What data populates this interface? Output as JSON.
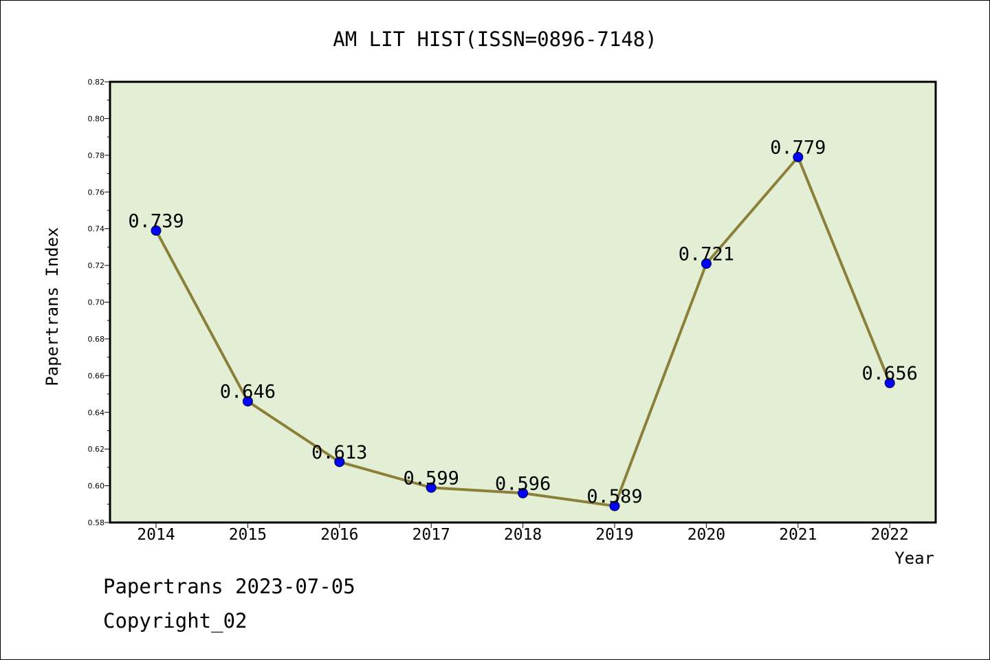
{
  "chart_data": {
    "type": "line",
    "title": "AM LIT HIST(ISSN=0896-7148)",
    "xlabel": "Year",
    "ylabel": "Papertrans Index",
    "categories": [
      "2014",
      "2015",
      "2016",
      "2017",
      "2018",
      "2019",
      "2020",
      "2021",
      "2022"
    ],
    "values": [
      0.739,
      0.646,
      0.613,
      0.599,
      0.596,
      0.589,
      0.721,
      0.779,
      0.656
    ],
    "data_labels": [
      "0.739",
      "0.646",
      "0.613",
      "0.599",
      "0.596",
      "0.589",
      "0.721",
      "0.779",
      "0.656"
    ],
    "ylim": [
      0.58,
      0.82
    ],
    "yticks": [
      0.58,
      0.6,
      0.62,
      0.64,
      0.66,
      0.68,
      0.7,
      0.72,
      0.74,
      0.76,
      0.78,
      0.8,
      0.82
    ],
    "ytick_labels": [
      "0.58",
      "0.60",
      "0.62",
      "0.64",
      "0.66",
      "0.68",
      "0.70",
      "0.72",
      "0.74",
      "0.76",
      "0.78",
      "0.80",
      "0.82"
    ],
    "grid": false,
    "colors": {
      "plot_background": "#e2efd5",
      "line": "#8b7f3a",
      "marker": "#0000ff"
    }
  },
  "footer": {
    "line1": "Papertrans 2023-07-05",
    "line2": "Copyright_02"
  }
}
